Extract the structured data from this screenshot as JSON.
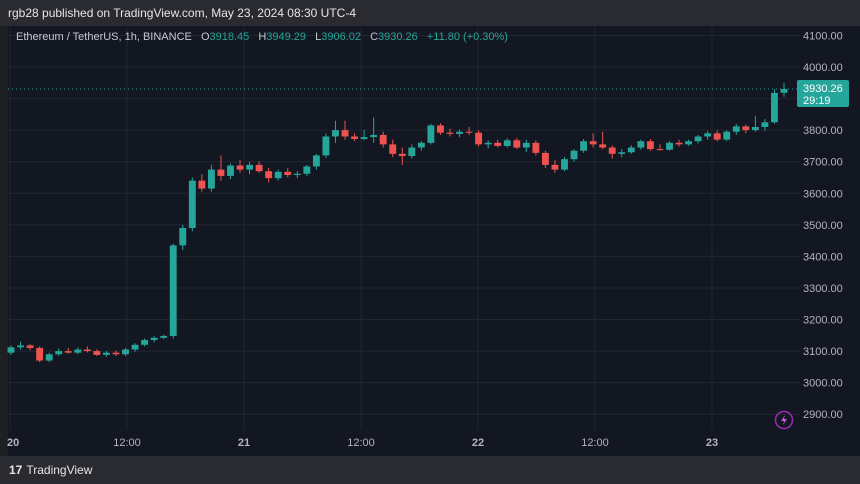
{
  "header": {
    "publisher_text": "rgb28 published on TradingView.com, May 23, 2024 08:30 UTC-4"
  },
  "legend": {
    "symbol": "Ethereum / TetherUS, 1h, BINANCE",
    "open_label": "O",
    "open": "3918.45",
    "high_label": "H",
    "high": "3949.29",
    "low_label": "L",
    "low": "3906.02",
    "close_label": "C",
    "close": "3930.26",
    "change": "+11.80 (+0.30%)"
  },
  "price_tag": {
    "price": "3930.26",
    "countdown": "29:19"
  },
  "footer": {
    "logo_text": "TradingView",
    "logo_mark": "17"
  },
  "colors": {
    "up": "#26a69a",
    "down": "#ef5350",
    "background": "#131722",
    "grid": "#22262f",
    "axis_text": "#b2b5be",
    "lightning": "#9c27b0"
  },
  "chart_data": {
    "type": "candlestick",
    "symbol": "Ethereum / TetherUS",
    "interval": "1h",
    "exchange": "BINANCE",
    "ylim": [
      2850,
      4130
    ],
    "y_ticks": [
      "4100.00",
      "4000.00",
      "3900.00",
      "3800.00",
      "3700.00",
      "3600.00",
      "3500.00",
      "3400.00",
      "3300.00",
      "3200.00",
      "3100.00",
      "3000.00",
      "2900.00"
    ],
    "x_ticks": [
      "20",
      "12:00",
      "21",
      "12:00",
      "22",
      "12:00",
      "23"
    ],
    "grid": true,
    "last_price": 3930.26,
    "candles": [
      {
        "o": 3095,
        "h": 3118,
        "l": 3088,
        "c": 3112
      },
      {
        "o": 3112,
        "h": 3130,
        "l": 3104,
        "c": 3118
      },
      {
        "o": 3118,
        "h": 3122,
        "l": 3102,
        "c": 3110
      },
      {
        "o": 3110,
        "h": 3115,
        "l": 3065,
        "c": 3070
      },
      {
        "o": 3070,
        "h": 3095,
        "l": 3065,
        "c": 3090
      },
      {
        "o": 3090,
        "h": 3108,
        "l": 3085,
        "c": 3100
      },
      {
        "o": 3100,
        "h": 3110,
        "l": 3092,
        "c": 3095
      },
      {
        "o": 3095,
        "h": 3112,
        "l": 3090,
        "c": 3105
      },
      {
        "o": 3105,
        "h": 3115,
        "l": 3096,
        "c": 3100
      },
      {
        "o": 3100,
        "h": 3106,
        "l": 3085,
        "c": 3088
      },
      {
        "o": 3088,
        "h": 3100,
        "l": 3082,
        "c": 3095
      },
      {
        "o": 3095,
        "h": 3102,
        "l": 3085,
        "c": 3090
      },
      {
        "o": 3090,
        "h": 3110,
        "l": 3084,
        "c": 3105
      },
      {
        "o": 3105,
        "h": 3125,
        "l": 3098,
        "c": 3120
      },
      {
        "o": 3120,
        "h": 3140,
        "l": 3115,
        "c": 3135
      },
      {
        "o": 3135,
        "h": 3148,
        "l": 3128,
        "c": 3142
      },
      {
        "o": 3142,
        "h": 3152,
        "l": 3138,
        "c": 3148
      },
      {
        "o": 3148,
        "h": 3440,
        "l": 3140,
        "c": 3435
      },
      {
        "o": 3435,
        "h": 3500,
        "l": 3420,
        "c": 3490
      },
      {
        "o": 3490,
        "h": 3650,
        "l": 3480,
        "c": 3640
      },
      {
        "o": 3640,
        "h": 3660,
        "l": 3605,
        "c": 3615
      },
      {
        "o": 3615,
        "h": 3690,
        "l": 3605,
        "c": 3675
      },
      {
        "o": 3675,
        "h": 3720,
        "l": 3640,
        "c": 3655
      },
      {
        "o": 3655,
        "h": 3695,
        "l": 3645,
        "c": 3688
      },
      {
        "o": 3688,
        "h": 3705,
        "l": 3665,
        "c": 3675
      },
      {
        "o": 3675,
        "h": 3700,
        "l": 3660,
        "c": 3690
      },
      {
        "o": 3690,
        "h": 3702,
        "l": 3665,
        "c": 3670
      },
      {
        "o": 3670,
        "h": 3680,
        "l": 3635,
        "c": 3648
      },
      {
        "o": 3648,
        "h": 3675,
        "l": 3640,
        "c": 3668
      },
      {
        "o": 3668,
        "h": 3680,
        "l": 3650,
        "c": 3658
      },
      {
        "o": 3658,
        "h": 3670,
        "l": 3648,
        "c": 3662
      },
      {
        "o": 3662,
        "h": 3690,
        "l": 3655,
        "c": 3685
      },
      {
        "o": 3685,
        "h": 3725,
        "l": 3675,
        "c": 3720
      },
      {
        "o": 3720,
        "h": 3790,
        "l": 3712,
        "c": 3780
      },
      {
        "o": 3780,
        "h": 3830,
        "l": 3760,
        "c": 3800
      },
      {
        "o": 3800,
        "h": 3830,
        "l": 3770,
        "c": 3780
      },
      {
        "o": 3780,
        "h": 3790,
        "l": 3765,
        "c": 3772
      },
      {
        "o": 3772,
        "h": 3800,
        "l": 3768,
        "c": 3778
      },
      {
        "o": 3778,
        "h": 3840,
        "l": 3760,
        "c": 3785
      },
      {
        "o": 3785,
        "h": 3795,
        "l": 3745,
        "c": 3755
      },
      {
        "o": 3755,
        "h": 3770,
        "l": 3715,
        "c": 3725
      },
      {
        "o": 3725,
        "h": 3745,
        "l": 3690,
        "c": 3718
      },
      {
        "o": 3718,
        "h": 3755,
        "l": 3710,
        "c": 3745
      },
      {
        "o": 3745,
        "h": 3765,
        "l": 3735,
        "c": 3760
      },
      {
        "o": 3760,
        "h": 3820,
        "l": 3755,
        "c": 3815
      },
      {
        "o": 3815,
        "h": 3822,
        "l": 3785,
        "c": 3792
      },
      {
        "o": 3792,
        "h": 3805,
        "l": 3780,
        "c": 3788
      },
      {
        "o": 3788,
        "h": 3802,
        "l": 3778,
        "c": 3795
      },
      {
        "o": 3795,
        "h": 3810,
        "l": 3785,
        "c": 3792
      },
      {
        "o": 3792,
        "h": 3800,
        "l": 3748,
        "c": 3755
      },
      {
        "o": 3755,
        "h": 3768,
        "l": 3742,
        "c": 3760
      },
      {
        "o": 3760,
        "h": 3770,
        "l": 3745,
        "c": 3750
      },
      {
        "o": 3750,
        "h": 3775,
        "l": 3745,
        "c": 3768
      },
      {
        "o": 3768,
        "h": 3775,
        "l": 3740,
        "c": 3745
      },
      {
        "o": 3745,
        "h": 3770,
        "l": 3730,
        "c": 3760
      },
      {
        "o": 3760,
        "h": 3768,
        "l": 3720,
        "c": 3728
      },
      {
        "o": 3728,
        "h": 3735,
        "l": 3680,
        "c": 3690
      },
      {
        "o": 3690,
        "h": 3705,
        "l": 3665,
        "c": 3675
      },
      {
        "o": 3675,
        "h": 3715,
        "l": 3670,
        "c": 3708
      },
      {
        "o": 3708,
        "h": 3740,
        "l": 3700,
        "c": 3735
      },
      {
        "o": 3735,
        "h": 3772,
        "l": 3728,
        "c": 3765
      },
      {
        "o": 3765,
        "h": 3790,
        "l": 3745,
        "c": 3755
      },
      {
        "o": 3755,
        "h": 3795,
        "l": 3740,
        "c": 3745
      },
      {
        "o": 3745,
        "h": 3752,
        "l": 3710,
        "c": 3725
      },
      {
        "o": 3725,
        "h": 3740,
        "l": 3715,
        "c": 3730
      },
      {
        "o": 3730,
        "h": 3752,
        "l": 3725,
        "c": 3745
      },
      {
        "o": 3745,
        "h": 3770,
        "l": 3738,
        "c": 3765
      },
      {
        "o": 3765,
        "h": 3772,
        "l": 3735,
        "c": 3740
      },
      {
        "o": 3740,
        "h": 3755,
        "l": 3735,
        "c": 3738
      },
      {
        "o": 3738,
        "h": 3765,
        "l": 3735,
        "c": 3760
      },
      {
        "o": 3760,
        "h": 3770,
        "l": 3748,
        "c": 3755
      },
      {
        "o": 3755,
        "h": 3770,
        "l": 3750,
        "c": 3765
      },
      {
        "o": 3765,
        "h": 3785,
        "l": 3758,
        "c": 3780
      },
      {
        "o": 3780,
        "h": 3798,
        "l": 3770,
        "c": 3790
      },
      {
        "o": 3790,
        "h": 3800,
        "l": 3765,
        "c": 3770
      },
      {
        "o": 3770,
        "h": 3800,
        "l": 3765,
        "c": 3795
      },
      {
        "o": 3795,
        "h": 3820,
        "l": 3785,
        "c": 3812
      },
      {
        "o": 3812,
        "h": 3818,
        "l": 3790,
        "c": 3800
      },
      {
        "o": 3800,
        "h": 3845,
        "l": 3795,
        "c": 3810
      },
      {
        "o": 3810,
        "h": 3835,
        "l": 3798,
        "c": 3825
      },
      {
        "o": 3825,
        "h": 3930,
        "l": 3820,
        "c": 3918
      },
      {
        "o": 3918.45,
        "h": 3949.29,
        "l": 3906.02,
        "c": 3930.26
      }
    ]
  }
}
